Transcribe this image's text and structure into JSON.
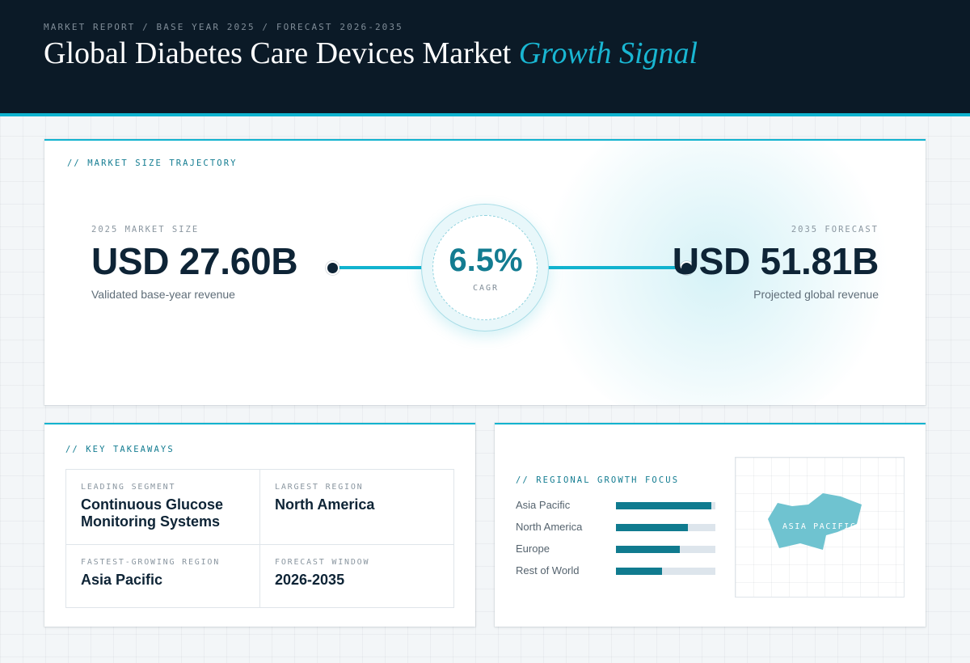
{
  "header": {
    "eyebrow": "MARKET REPORT / BASE YEAR 2025 / FORECAST 2026-2035",
    "title_main": "Global Diabetes Care Devices Market",
    "title_accent": "Growth Signal"
  },
  "trajectory": {
    "label": "// MARKET SIZE TRAJECTORY",
    "base": {
      "label": "2025 MARKET SIZE",
      "value": "USD 27.60B",
      "caption": "Validated base-year revenue"
    },
    "forecast": {
      "label": "2035 FORECAST",
      "value": "USD 51.81B",
      "caption": "Projected global revenue"
    },
    "cagr": {
      "value": "6.5%",
      "label": "CAGR"
    }
  },
  "takeaways": {
    "label": "// KEY TAKEAWAYS",
    "items": [
      {
        "key": "LEADING SEGMENT",
        "value": "Continuous Glucose Monitoring Systems"
      },
      {
        "key": "LARGEST REGION",
        "value": "North America"
      },
      {
        "key": "FASTEST-GROWING REGION",
        "value": "Asia Pacific"
      },
      {
        "key": "FORECAST WINDOW",
        "value": "2026-2035"
      }
    ]
  },
  "regional": {
    "label": "// REGIONAL GROWTH FOCUS",
    "regions": [
      {
        "name": "Asia Pacific",
        "level": 0.96
      },
      {
        "name": "North America",
        "level": 0.72
      },
      {
        "name": "Europe",
        "level": 0.64
      },
      {
        "name": "Rest of World",
        "level": 0.46
      }
    ],
    "map_label": "ASIA PACIFIC"
  },
  "colors": {
    "accent": "#11b3cf",
    "bar_fill": "#107b8f",
    "dark": "#0b1a27",
    "map_shape": "#6fc3d0"
  }
}
